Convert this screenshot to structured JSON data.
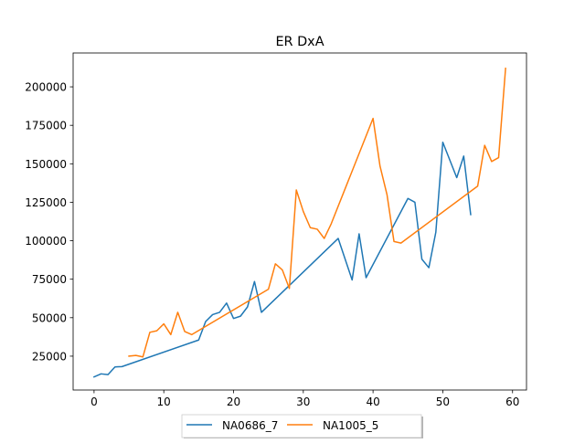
{
  "chart_data": {
    "type": "line",
    "title": "ER DxA",
    "xlabel": "",
    "ylabel": "",
    "xlim": [
      -3,
      62
    ],
    "ylim": [
      3000,
      222000
    ],
    "xticks": [
      0,
      10,
      20,
      30,
      40,
      50,
      60
    ],
    "yticks": [
      25000,
      50000,
      75000,
      100000,
      125000,
      150000,
      175000,
      200000
    ],
    "grid": false,
    "legend_placement": "bottom-center, below axes",
    "series": [
      {
        "name": "NA0686_7",
        "color": "#1f77b4",
        "points": [
          [
            0,
            11500
          ],
          [
            1,
            13500
          ],
          [
            2,
            13000
          ],
          [
            3,
            18000
          ],
          [
            4,
            18200
          ],
          [
            15,
            35500
          ],
          [
            16,
            47500
          ],
          [
            17,
            52000
          ],
          [
            18,
            53500
          ],
          [
            19,
            59500
          ],
          [
            20,
            49500
          ],
          [
            21,
            51000
          ],
          [
            22,
            57000
          ],
          [
            23,
            73500
          ],
          [
            24,
            53500
          ],
          [
            35,
            101500
          ],
          [
            37,
            74500
          ],
          [
            38,
            104500
          ],
          [
            39,
            76000
          ],
          [
            45,
            127500
          ],
          [
            46,
            125000
          ],
          [
            47,
            88000
          ],
          [
            48,
            82500
          ],
          [
            49,
            105500
          ],
          [
            50,
            164000
          ],
          [
            52,
            141000
          ],
          [
            53,
            155000
          ],
          [
            54,
            117000
          ]
        ]
      },
      {
        "name": "NA1005_5",
        "color": "#ff7f0e",
        "points": [
          [
            5,
            25000
          ],
          [
            6,
            25500
          ],
          [
            7,
            24500
          ],
          [
            8,
            40500
          ],
          [
            9,
            41500
          ],
          [
            10,
            46000
          ],
          [
            11,
            39000
          ],
          [
            12,
            53500
          ],
          [
            13,
            41000
          ],
          [
            14,
            39000
          ],
          [
            25,
            68500
          ],
          [
            26,
            85000
          ],
          [
            27,
            81000
          ],
          [
            28,
            69000
          ],
          [
            29,
            133000
          ],
          [
            30,
            119000
          ],
          [
            31,
            108500
          ],
          [
            32,
            107500
          ],
          [
            33,
            101500
          ],
          [
            34,
            111000
          ],
          [
            40,
            179500
          ],
          [
            41,
            148500
          ],
          [
            42,
            130000
          ],
          [
            43,
            99500
          ],
          [
            44,
            98500
          ],
          [
            55,
            135500
          ],
          [
            56,
            162000
          ],
          [
            57,
            151500
          ],
          [
            58,
            154000
          ],
          [
            59,
            212000
          ]
        ]
      }
    ]
  }
}
